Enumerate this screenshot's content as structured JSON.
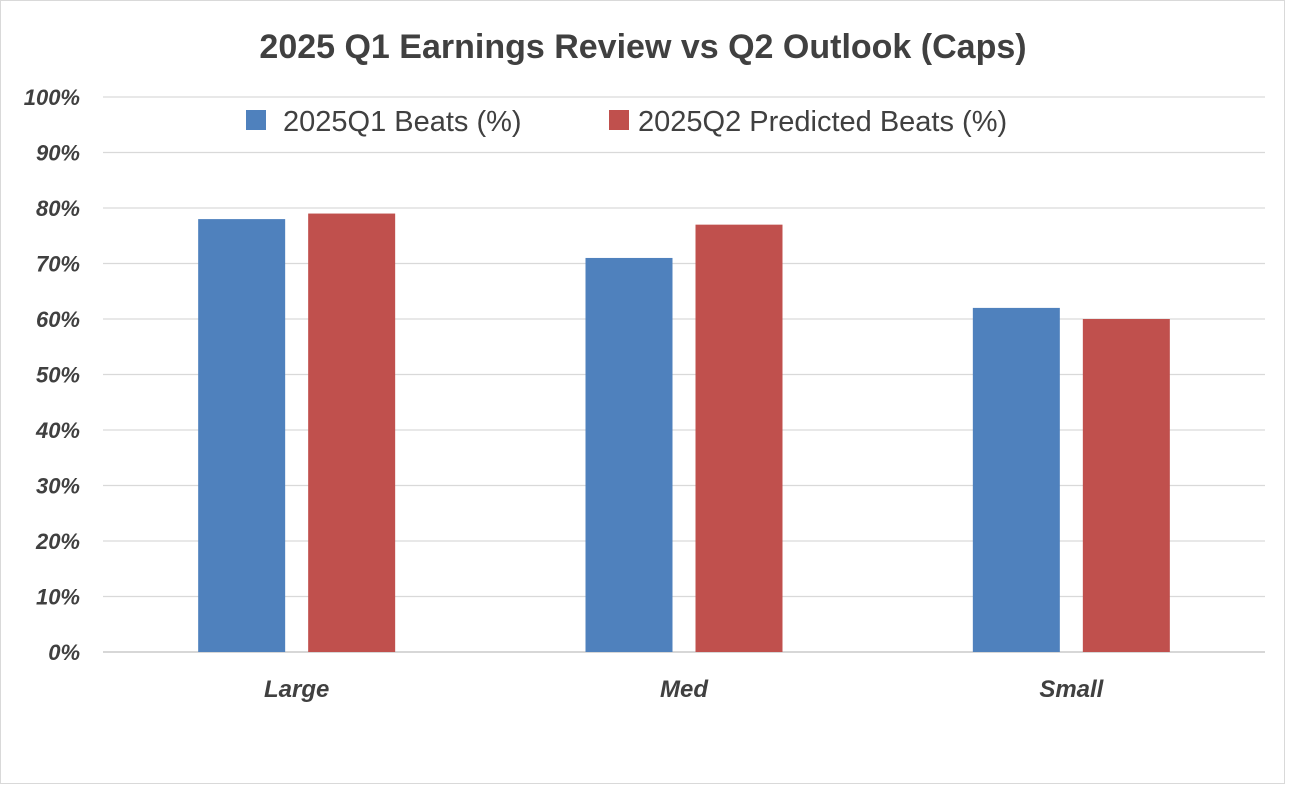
{
  "chart_data": {
    "type": "bar",
    "title": "2025 Q1 Earnings Review vs Q2 Outlook (Caps)",
    "categories": [
      "Large",
      "Med",
      "Small"
    ],
    "series": [
      {
        "name": "2025Q1 Beats (%)",
        "values": [
          78,
          71,
          62
        ],
        "color": "#4f81bd"
      },
      {
        "name": "2025Q2 Predicted Beats (%)",
        "values": [
          79,
          77,
          60
        ],
        "color": "#c0504d"
      }
    ],
    "ylim": [
      0,
      100
    ],
    "yticks": [
      "0%",
      "10%",
      "20%",
      "30%",
      "40%",
      "50%",
      "60%",
      "70%",
      "80%",
      "90%",
      "100%"
    ],
    "grid": true,
    "legend_position": "top"
  }
}
